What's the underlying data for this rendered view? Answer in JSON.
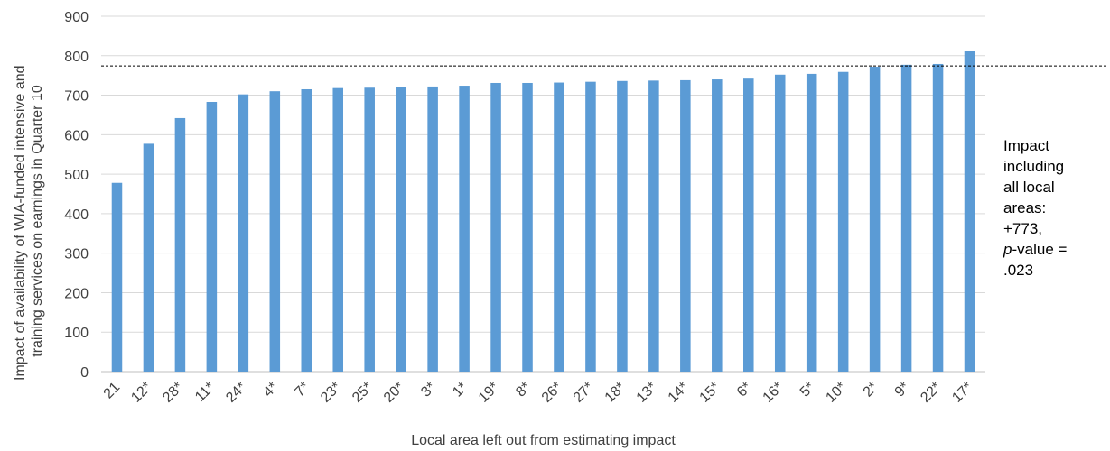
{
  "chart_data": {
    "type": "bar",
    "categories": [
      "21",
      "12*",
      "28*",
      "11*",
      "24*",
      "4*",
      "7*",
      "23*",
      "25*",
      "20*",
      "3*",
      "1*",
      "19*",
      "8*",
      "26*",
      "27*",
      "18*",
      "13*",
      "14*",
      "15*",
      "6*",
      "16*",
      "5*",
      "10*",
      "2*",
      "9*",
      "22*",
      "17*"
    ],
    "values": [
      478,
      577,
      642,
      683,
      702,
      710,
      715,
      718,
      719,
      720,
      722,
      724,
      731,
      731,
      732,
      734,
      736,
      737,
      738,
      740,
      742,
      752,
      754,
      759,
      772,
      777,
      779,
      813
    ],
    "xlabel": "Local area left out from estimating impact",
    "ylabel_line1": "Impact of availability of WIA-funded intensive and",
    "ylabel_line2": "training services on earnings in Quarter 10",
    "ylim": [
      0,
      900
    ],
    "yticks": [
      0,
      100,
      200,
      300,
      400,
      500,
      600,
      700,
      800,
      900
    ],
    "grid": true,
    "bar_color": "#5B9BD5",
    "reference_line": {
      "value": 773,
      "style": "dashed"
    }
  },
  "annotation": {
    "lines": [
      "Impact",
      "including",
      "all local",
      "areas:",
      "+773,"
    ],
    "pvalue_italic": "p",
    "pvalue_rest": "-value =",
    "pvalue_number": ".023"
  }
}
